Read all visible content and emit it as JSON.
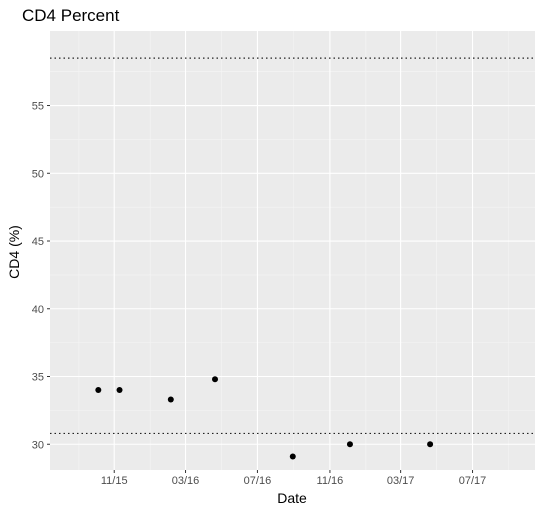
{
  "chart_data": {
    "type": "scatter",
    "title": "CD4 Percent",
    "xlabel": "Date",
    "ylabel": "CD4 (%)",
    "x_ticks": [
      {
        "label": "11/15",
        "date": "2015-11-01"
      },
      {
        "label": "03/16",
        "date": "2016-03-01"
      },
      {
        "label": "07/16",
        "date": "2016-07-01"
      },
      {
        "label": "11/16",
        "date": "2016-11-01"
      },
      {
        "label": "03/17",
        "date": "2017-03-01"
      },
      {
        "label": "07/17",
        "date": "2017-07-01"
      }
    ],
    "y_ticks": [
      30,
      35,
      40,
      45,
      50,
      55
    ],
    "xlim": [
      "2015-07-15",
      "2017-10-15"
    ],
    "ylim": [
      28.1,
      60.5
    ],
    "reference_lines": [
      {
        "y": 30.8,
        "style": "dotted"
      },
      {
        "y": 58.5,
        "style": "dotted"
      }
    ],
    "points": [
      {
        "x": "2015-10-05",
        "y": 34.0
      },
      {
        "x": "2015-11-10",
        "y": 34.0
      },
      {
        "x": "2016-02-05",
        "y": 33.3
      },
      {
        "x": "2016-04-20",
        "y": 34.8
      },
      {
        "x": "2016-08-30",
        "y": 29.1
      },
      {
        "x": "2016-12-05",
        "y": 30.0
      },
      {
        "x": "2017-04-20",
        "y": 30.0
      }
    ],
    "grid": true,
    "background_color": "#ebebeb",
    "point_color": "#000000"
  }
}
